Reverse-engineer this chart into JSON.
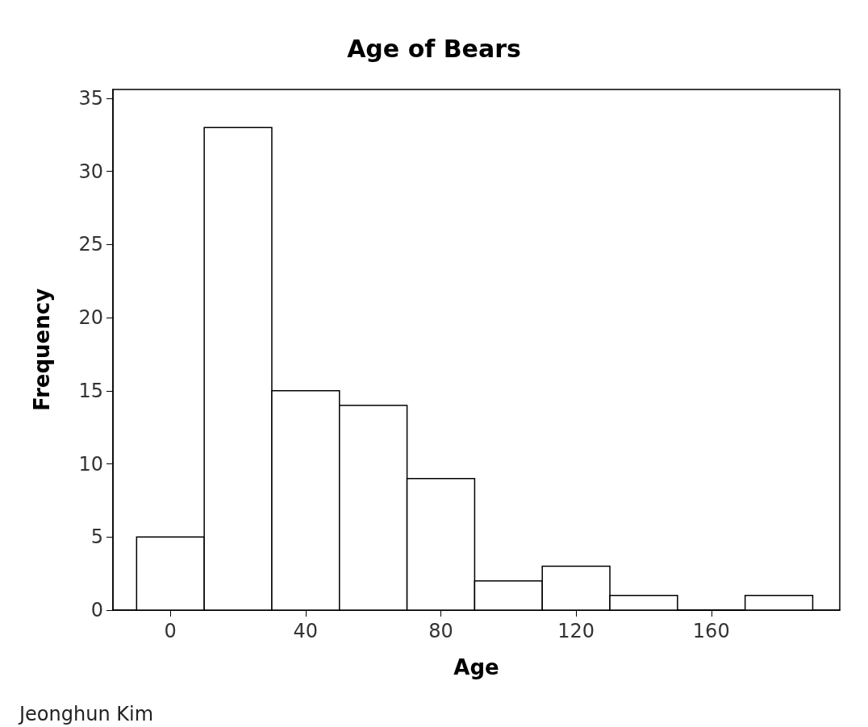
{
  "chart_data": {
    "type": "histogram",
    "title": "Age of Bears",
    "xlabel": "Age",
    "ylabel": "Frequency",
    "bins": [
      -10,
      10,
      30,
      50,
      70,
      90,
      110,
      130,
      150,
      170,
      190
    ],
    "values": [
      5,
      33,
      15,
      14,
      9,
      2,
      3,
      1,
      0,
      1
    ],
    "color": "#ffffff",
    "xlim": [
      -17,
      198
    ],
    "xticks": [
      0,
      40,
      80,
      120,
      160
    ],
    "ylim": [
      0,
      35.6
    ],
    "yticks": [
      0,
      5,
      10,
      15,
      20,
      25,
      30,
      35
    ],
    "grid": false,
    "annotations": [
      "Jeonghun Kim"
    ]
  }
}
